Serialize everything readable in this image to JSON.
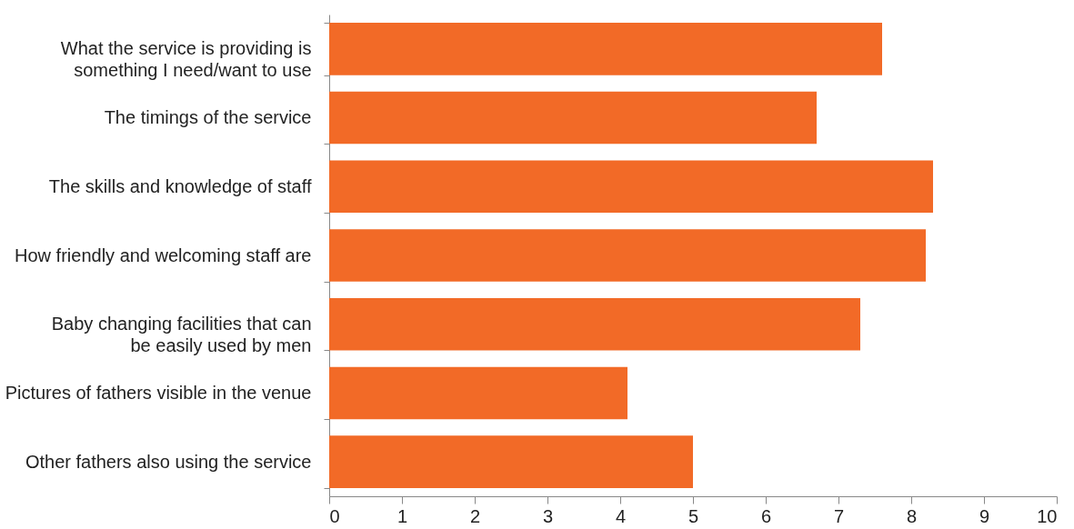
{
  "chart_data": {
    "type": "bar",
    "orientation": "horizontal",
    "categories": [
      "What the service is providing is\nsomething I need/want to use",
      "The timings of the service",
      "The skills and knowledge of staff",
      "How friendly and welcoming staff are",
      "Baby changing facilities that can\nbe easily used by men",
      "Pictures of fathers visible in the venue",
      "Other fathers also using the service"
    ],
    "values": [
      7.6,
      6.7,
      8.3,
      8.2,
      7.3,
      4.1,
      5.0
    ],
    "color": "#f26a27",
    "xlim": [
      0,
      10
    ],
    "xticks": [
      0,
      1,
      2,
      3,
      4,
      5,
      6,
      7,
      8,
      9,
      10
    ],
    "grid": false
  }
}
